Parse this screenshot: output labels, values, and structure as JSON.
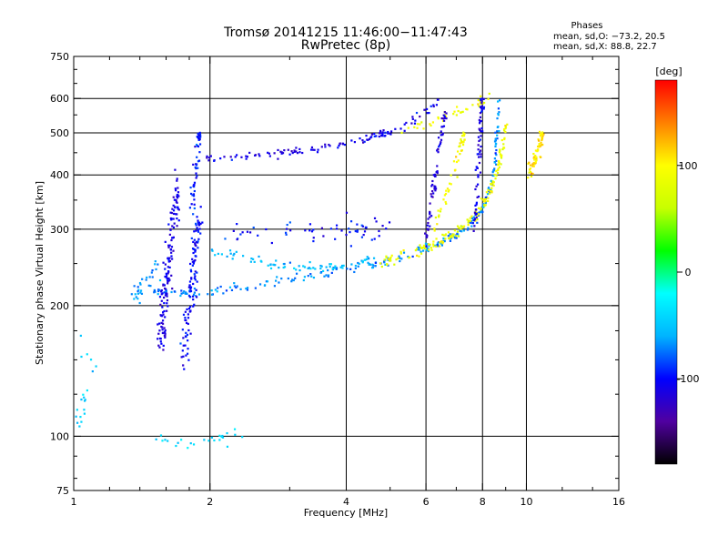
{
  "chart_data": {
    "type": "scatter",
    "title": "Tromsø 20141215 11:46:00−11:47:43",
    "subtitle": "RwPretec (8p)",
    "xlabel": "Frequency [MHz]",
    "ylabel": "Stationary phase Virtual Height [km]",
    "x_scale": "log",
    "y_scale": "log",
    "xlim": [
      1,
      16
    ],
    "ylim": [
      75,
      750
    ],
    "x_ticks": [
      1,
      2,
      4,
      6,
      8,
      10,
      16
    ],
    "x_tick_labels": [
      "1",
      "2",
      "4",
      "6",
      "8",
      "10",
      "16"
    ],
    "x_grid": [
      2,
      4,
      6,
      8,
      10
    ],
    "y_ticks": [
      75,
      100,
      200,
      300,
      400,
      500,
      600,
      750
    ],
    "y_tick_labels": [
      "75",
      "100",
      "200",
      "300",
      "400",
      "500",
      "600",
      "750"
    ],
    "y_grid": [
      100,
      200,
      300,
      400,
      500,
      600
    ],
    "grid": true,
    "phases": {
      "heading": "Phases",
      "o_line": "mean, sd,O: −73.2, 20.5",
      "x_line": "mean, sd,X:  88.8, 22.7"
    },
    "colorbar": {
      "label": "[deg]",
      "range": [
        -180,
        180
      ],
      "ticks": [
        100,
        0,
        -100
      ],
      "tick_labels": [
        "100",
        "0",
        "-100"
      ],
      "colors": [
        "#000000",
        "#5000a0",
        "#0000ff",
        "#00b4ff",
        "#00ffff",
        "#00ff00",
        "#c8ff00",
        "#ffff00",
        "#ff8000",
        "#ff0000"
      ]
    },
    "traces": [
      {
        "name": "",
        "points": [
          [
            1.85,
            440
          ],
          [
            2.2,
            438
          ],
          [
            2.6,
            445
          ],
          [
            3.0,
            452
          ],
          [
            3.5,
            462
          ],
          [
            4.0,
            472
          ],
          [
            4.5,
            488
          ],
          [
            5.0,
            502
          ],
          [
            5.5,
            525
          ],
          [
            6.0,
            560
          ],
          [
            6.4,
            590
          ]
        ],
        "phase": -110,
        "spread": 0.015,
        "n": 120
      },
      {
        "name": "",
        "points": [
          [
            5.2,
            500
          ],
          [
            6.0,
            525
          ],
          [
            6.6,
            545
          ],
          [
            7.2,
            565
          ],
          [
            7.8,
            585
          ],
          [
            8.3,
            605
          ]
        ],
        "phase": 90,
        "spread": 0.02,
        "n": 40
      },
      {
        "name": "",
        "points": [
          [
            1.5,
            215
          ],
          [
            1.8,
            212
          ],
          [
            2.2,
            218
          ],
          [
            2.7,
            225
          ],
          [
            3.3,
            233
          ],
          [
            4.0,
            242
          ],
          [
            4.6,
            250
          ],
          [
            5.2,
            258
          ],
          [
            5.8,
            267
          ],
          [
            6.4,
            278
          ],
          [
            7.0,
            292
          ],
          [
            7.6,
            312
          ],
          [
            8.0,
            335
          ],
          [
            8.3,
            370
          ],
          [
            8.5,
            420
          ],
          [
            8.6,
            500
          ],
          [
            8.7,
            600
          ]
        ],
        "phase": -70,
        "spread": 0.018,
        "n": 240
      },
      {
        "name": "",
        "points": [
          [
            2.0,
            268
          ],
          [
            2.3,
            260
          ],
          [
            2.7,
            250
          ],
          [
            3.0,
            246
          ],
          [
            3.4,
            244
          ],
          [
            3.8,
            246
          ],
          [
            4.2,
            250
          ],
          [
            4.6,
            258
          ]
        ],
        "phase": -55,
        "spread": 0.018,
        "n": 80
      },
      {
        "name": "",
        "points": [
          [
            4.6,
            250
          ],
          [
            5.2,
            258
          ],
          [
            5.8,
            268
          ],
          [
            6.4,
            279
          ],
          [
            7.0,
            295
          ],
          [
            7.6,
            318
          ],
          [
            8.1,
            345
          ],
          [
            8.5,
            390
          ],
          [
            8.8,
            450
          ],
          [
            9.0,
            520
          ]
        ],
        "phase": 90,
        "spread": 0.022,
        "n": 160
      },
      {
        "name": "",
        "points": [
          [
            6.2,
            300
          ],
          [
            6.6,
            350
          ],
          [
            6.9,
            400
          ],
          [
            7.1,
            450
          ],
          [
            7.3,
            500
          ]
        ],
        "phase": 95,
        "spread": 0.025,
        "n": 50
      },
      {
        "name": "",
        "points": [
          [
            1.55,
            160
          ],
          [
            1.6,
            220
          ],
          [
            1.65,
            300
          ],
          [
            1.7,
            380
          ]
        ],
        "phase": -110,
        "spread": 0.05,
        "n": 150
      },
      {
        "name": "",
        "points": [
          [
            1.75,
            150
          ],
          [
            1.8,
            200
          ],
          [
            1.85,
            260
          ],
          [
            1.9,
            320
          ]
        ],
        "phase": -100,
        "spread": 0.045,
        "n": 110
      },
      {
        "name": "",
        "points": [
          [
            1.82,
            330
          ],
          [
            1.85,
            400
          ],
          [
            1.88,
            460
          ],
          [
            1.9,
            500
          ]
        ],
        "phase": -95,
        "spread": 0.03,
        "n": 50
      },
      {
        "name": "",
        "points": [
          [
            2.2,
            290
          ],
          [
            2.6,
            300
          ],
          [
            3.2,
            300
          ],
          [
            3.8,
            295
          ],
          [
            4.4,
            300
          ],
          [
            5.0,
            300
          ]
        ],
        "phase": -100,
        "spread": 0.05,
        "n": 60
      },
      {
        "name": "",
        "points": [
          [
            10.0,
            400
          ],
          [
            10.3,
            420
          ],
          [
            10.5,
            440
          ],
          [
            10.7,
            470
          ],
          [
            10.8,
            500
          ]
        ],
        "phase": 110,
        "spread": 0.03,
        "n": 60
      },
      {
        "name": "",
        "points": [
          [
            6.0,
            280
          ],
          [
            6.2,
            360
          ],
          [
            6.4,
            450
          ],
          [
            6.6,
            560
          ]
        ],
        "phase": -115,
        "spread": 0.03,
        "n": 70
      },
      {
        "name": "",
        "points": [
          [
            7.7,
            300
          ],
          [
            7.8,
            400
          ],
          [
            7.9,
            500
          ],
          [
            8.0,
            600
          ]
        ],
        "phase": -110,
        "spread": 0.025,
        "n": 70
      },
      {
        "name": "",
        "points": [
          [
            1.5,
            98
          ],
          [
            1.8,
            97
          ],
          [
            2.1,
            98
          ],
          [
            2.4,
            102
          ]
        ],
        "phase": -40,
        "spread": 0.03,
        "n": 25
      },
      {
        "name": "",
        "points": [
          [
            1.0,
            100
          ],
          [
            1.05,
            120
          ],
          [
            1.1,
            140
          ],
          [
            1.05,
            175
          ]
        ],
        "phase": -45,
        "spread": 0.05,
        "n": 20
      },
      {
        "name": "",
        "points": [
          [
            1.35,
            210
          ],
          [
            1.45,
            230
          ],
          [
            1.55,
            245
          ]
        ],
        "phase": -60,
        "spread": 0.04,
        "n": 30
      }
    ]
  }
}
